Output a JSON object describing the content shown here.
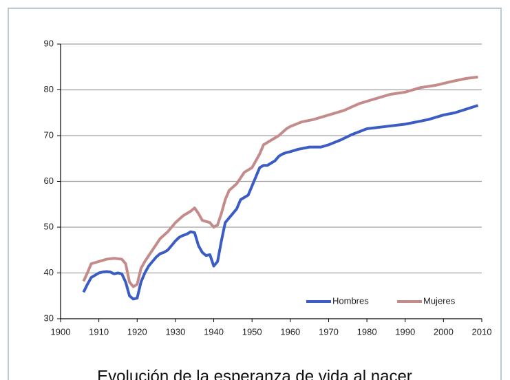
{
  "chart_data": {
    "type": "line",
    "title": "Evolución de la esperanza de vida al nacer",
    "xlim": [
      1900,
      2010
    ],
    "xticks": [
      1900,
      1910,
      1920,
      1930,
      1940,
      1950,
      1960,
      1970,
      1980,
      1990,
      2000,
      2010
    ],
    "ylim": [
      30,
      90
    ],
    "yticks": [
      30,
      40,
      50,
      60,
      70,
      80,
      90
    ],
    "grid": true,
    "legend": "lower right",
    "series": [
      {
        "name": "Hombres",
        "color": "#3a5cc4",
        "x": [
          1906,
          1907,
          1908,
          1909,
          1910,
          1911,
          1912,
          1913,
          1914,
          1915,
          1916,
          1917,
          1918,
          1919,
          1920,
          1921,
          1922,
          1923,
          1924,
          1925,
          1926,
          1927,
          1928,
          1929,
          1930,
          1931,
          1932,
          1933,
          1934,
          1935,
          1936,
          1937,
          1938,
          1939,
          1940,
          1941,
          1942,
          1943,
          1944,
          1945,
          1946,
          1947,
          1948,
          1949,
          1950,
          1951,
          1952,
          1953,
          1954,
          1955,
          1956,
          1957,
          1958,
          1959,
          1960,
          1962,
          1965,
          1968,
          1970,
          1973,
          1976,
          1980,
          1985,
          1990,
          1993,
          1996,
          2000,
          2003,
          2006,
          2009
        ],
        "values": [
          35.8,
          37.5,
          39,
          39.5,
          40,
          40.2,
          40.3,
          40.2,
          39.8,
          40,
          39.8,
          38,
          35,
          34.3,
          34.5,
          38,
          40,
          41.5,
          42.5,
          43.5,
          44.2,
          44.5,
          45,
          46,
          47,
          47.8,
          48.2,
          48.5,
          49,
          48.8,
          46,
          44.5,
          43.8,
          44,
          41.5,
          42.5,
          47,
          51,
          52,
          53,
          54,
          56,
          56.5,
          57,
          59,
          61,
          63,
          63.5,
          63.5,
          64,
          64.5,
          65.5,
          66,
          66.3,
          66.5,
          67,
          67.5,
          67.5,
          68,
          69,
          70.2,
          71.5,
          72,
          72.5,
          73,
          73.5,
          74.5,
          75,
          75.8,
          76.6
        ]
      },
      {
        "name": "Mujeres",
        "color": "#c48b8b",
        "x": [
          1906,
          1907,
          1908,
          1910,
          1912,
          1914,
          1916,
          1917,
          1918,
          1919,
          1920,
          1921,
          1922,
          1924,
          1926,
          1928,
          1930,
          1932,
          1934,
          1935,
          1936,
          1937,
          1939,
          1940,
          1941,
          1942,
          1943,
          1944,
          1946,
          1948,
          1950,
          1952,
          1953,
          1955,
          1957,
          1959,
          1960,
          1963,
          1966,
          1970,
          1974,
          1978,
          1982,
          1986,
          1990,
          1994,
          1998,
          2002,
          2006,
          2009
        ],
        "values": [
          38.2,
          40,
          42,
          42.5,
          43,
          43.2,
          43,
          42,
          38,
          37,
          37.5,
          41,
          42.5,
          45,
          47.5,
          49,
          51,
          52.5,
          53.5,
          54.2,
          53,
          51.5,
          51,
          50,
          50.5,
          53,
          56,
          58,
          59.5,
          62,
          63,
          66,
          68,
          69,
          70,
          71.5,
          72,
          73,
          73.5,
          74.5,
          75.5,
          77,
          78,
          79,
          79.5,
          80.5,
          81,
          81.8,
          82.5,
          82.8
        ]
      }
    ]
  }
}
